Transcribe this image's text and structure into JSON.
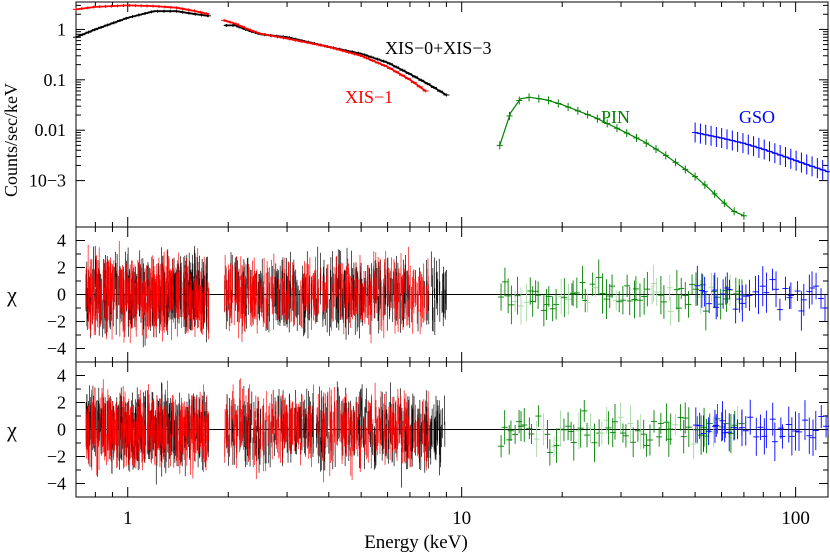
{
  "chart_data": {
    "type": "line",
    "xlabel": "Energy (keV)",
    "xscale": "log",
    "xlim": [
      0.7,
      125
    ],
    "x_ticks": [
      "1",
      "10",
      "100"
    ],
    "x_tick_values": [
      1,
      10,
      100
    ],
    "panels": [
      {
        "name": "spectrum",
        "ylabel": "Counts/sec/keV",
        "yscale": "log",
        "ylim": [
          0.00012,
          3.5
        ],
        "y_ticks": [
          "1",
          "0.1",
          "0.01",
          "10−3"
        ],
        "y_tick_values": [
          1,
          0.1,
          0.01,
          0.001
        ],
        "series": [
          {
            "name": "XIS−0+XIS−3",
            "color": "#000000",
            "points": [
              [
                0.7,
                0.7
              ],
              [
                0.8,
                1.0
              ],
              [
                1.0,
                1.7
              ],
              [
                1.2,
                2.3
              ],
              [
                1.4,
                2.3
              ],
              [
                1.6,
                2.0
              ],
              [
                1.75,
                1.85
              ],
              [
                1.95,
                1.2
              ],
              [
                2.1,
                1.2
              ],
              [
                2.3,
                0.95
              ],
              [
                2.5,
                0.8
              ],
              [
                3.0,
                0.7
              ],
              [
                4.0,
                0.45
              ],
              [
                5.0,
                0.33
              ],
              [
                6.0,
                0.22
              ],
              [
                7.0,
                0.13
              ],
              [
                8.0,
                0.08
              ],
              [
                9.0,
                0.05
              ]
            ]
          },
          {
            "name": "XIS−1",
            "color": "#ff0000",
            "points": [
              [
                0.7,
                2.5
              ],
              [
                0.8,
                2.8
              ],
              [
                1.0,
                3.0
              ],
              [
                1.2,
                2.9
              ],
              [
                1.4,
                2.7
              ],
              [
                1.6,
                2.3
              ],
              [
                1.75,
                2.0
              ],
              [
                1.95,
                1.5
              ],
              [
                2.1,
                1.3
              ],
              [
                2.3,
                1.0
              ],
              [
                2.5,
                0.82
              ],
              [
                3.0,
                0.66
              ],
              [
                4.0,
                0.45
              ],
              [
                5.0,
                0.3
              ],
              [
                6.0,
                0.18
              ],
              [
                7.0,
                0.1
              ],
              [
                7.8,
                0.06
              ]
            ]
          },
          {
            "name": "PIN",
            "color": "#008000",
            "points": [
              [
                13,
                0.005
              ],
              [
                14,
                0.022
              ],
              [
                15,
                0.042
              ],
              [
                16,
                0.045
              ],
              [
                18,
                0.04
              ],
              [
                20,
                0.032
              ],
              [
                25,
                0.018
              ],
              [
                30,
                0.01
              ],
              [
                35,
                0.006
              ],
              [
                40,
                0.0035
              ],
              [
                45,
                0.002
              ],
              [
                50,
                0.0012
              ],
              [
                55,
                0.0007
              ],
              [
                60,
                0.0004
              ],
              [
                65,
                0.00025
              ],
              [
                70,
                0.0002
              ]
            ]
          },
          {
            "name": "GSO",
            "color": "#0000ff",
            "points": [
              [
                50,
                0.009
              ],
              [
                60,
                0.007
              ],
              [
                70,
                0.0055
              ],
              [
                80,
                0.0042
              ],
              [
                90,
                0.0032
              ],
              [
                100,
                0.0025
              ],
              [
                110,
                0.002
              ],
              [
                125,
                0.0015
              ]
            ]
          }
        ],
        "annotations": [
          "XIS−0+XIS−3",
          "XIS−1",
          "PIN",
          "GSO"
        ]
      },
      {
        "name": "residuals-1",
        "ylabel": "χ",
        "ylim": [
          -5,
          5
        ],
        "y_ticks": [
          "4",
          "2",
          "0",
          "−2",
          "−4"
        ],
        "y_tick_values": [
          4,
          2,
          0,
          -2,
          -4
        ]
      },
      {
        "name": "residuals-2",
        "ylabel": "χ",
        "ylim": [
          -5,
          5
        ],
        "y_ticks": [
          "4",
          "2",
          "0",
          "−2",
          "−4"
        ],
        "y_tick_values": [
          4,
          2,
          0,
          -2,
          -4
        ]
      }
    ],
    "grid": false,
    "legend": "none"
  }
}
